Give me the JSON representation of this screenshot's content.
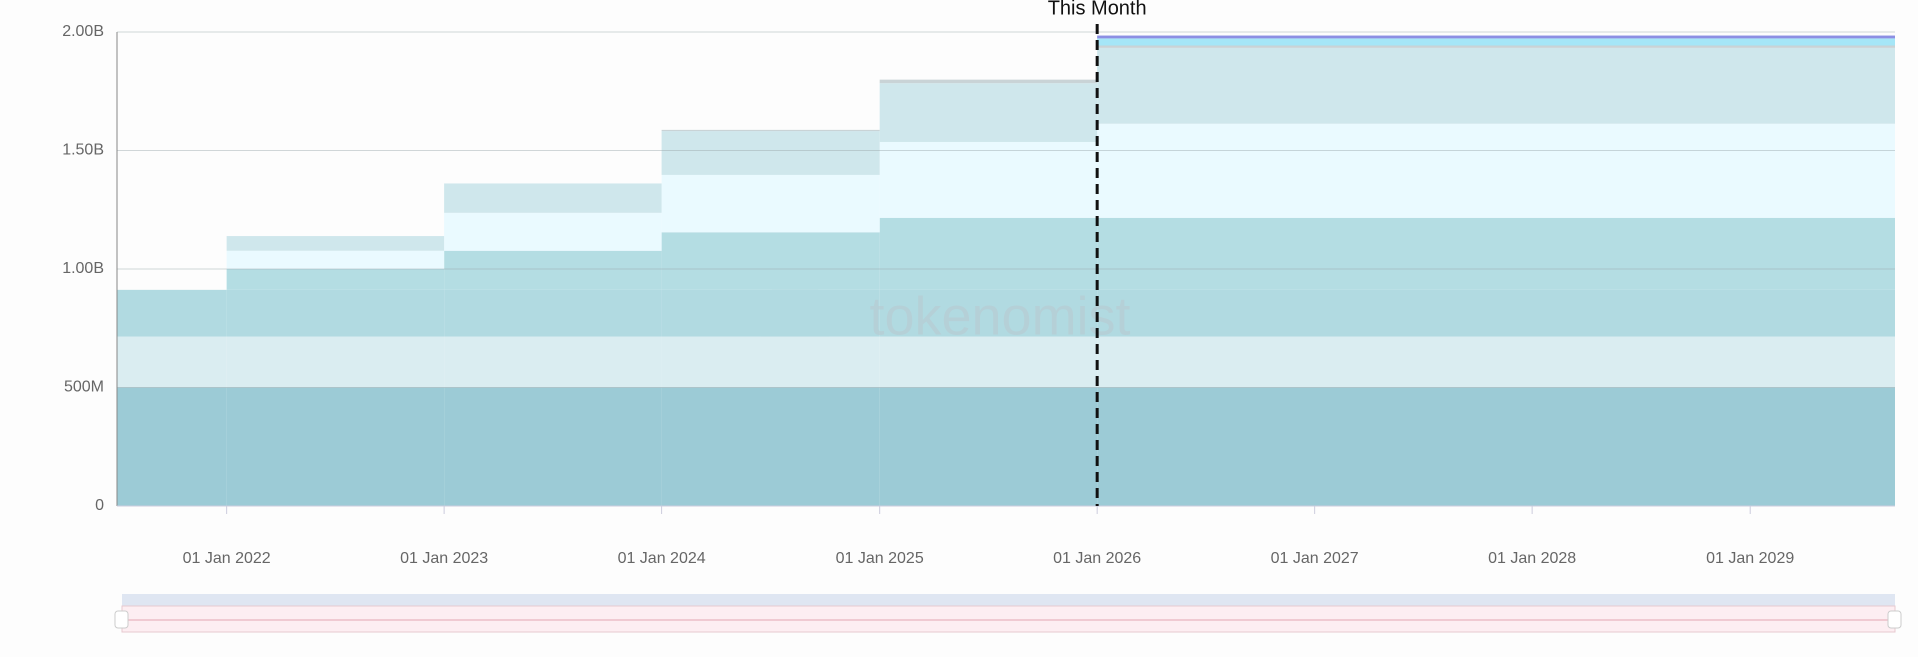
{
  "chart_data": {
    "type": "stacked-step-area",
    "annotation": "This Month",
    "annotation_x": "01 Jan 2026",
    "watermark": "tokenomist",
    "x": [
      "01 Jul 2021",
      "01 Jan 2022",
      "01 Jan 2023",
      "01 Jan 2024",
      "01 Jan 2025",
      "01 Jan 2026"
    ],
    "xlim": [
      "01 Jul 2021",
      "01 Sep 2029"
    ],
    "xticks": [
      "01 Jan 2022",
      "01 Jan 2023",
      "01 Jan 2024",
      "01 Jan 2025",
      "01 Jan 2026",
      "01 Jan 2027",
      "01 Jan 2028",
      "01 Jan 2029"
    ],
    "ylim": [
      0,
      2000000000
    ],
    "yticks": [
      0,
      {
        "value": 500000000,
        "label": "500M"
      },
      {
        "value": 1000000000,
        "label": "1.00B"
      },
      {
        "value": 1500000000,
        "label": "1.50B"
      },
      {
        "value": 2000000000,
        "label": "2.00B"
      }
    ],
    "grid": true,
    "series": [
      {
        "color": "#9ccbd6",
        "values": [
          500000000,
          500000000,
          500000000,
          500000000,
          500000000,
          500000000
        ]
      },
      {
        "color": "#daedf1",
        "values": [
          215000000,
          215000000,
          215000000,
          215000000,
          215000000,
          215000000
        ]
      },
      {
        "color": "#b1dae1",
        "values": [
          197000000,
          197000000,
          197000000,
          197000000,
          197000000,
          197000000
        ]
      },
      {
        "color": "#b4dde3",
        "values": [
          0,
          88000000,
          165000000,
          243000000,
          304000000,
          304000000
        ]
      },
      {
        "color": "#eafaff",
        "values": [
          0,
          77000000,
          160000000,
          242000000,
          320000000,
          397000000
        ]
      },
      {
        "color": "#cfe7ec",
        "values": [
          0,
          62000000,
          124000000,
          185000000,
          248000000,
          320000000
        ]
      },
      {
        "color": "#c9d3d6",
        "values": [
          0,
          0,
          0,
          5000000,
          15000000,
          10000000
        ]
      },
      {
        "color": "#a5e6f7",
        "values": [
          0,
          0,
          0,
          0,
          0,
          30000000
        ]
      },
      {
        "color": "#8c8fe3",
        "values": [
          0,
          0,
          0,
          0,
          0,
          12000000
        ]
      }
    ]
  }
}
